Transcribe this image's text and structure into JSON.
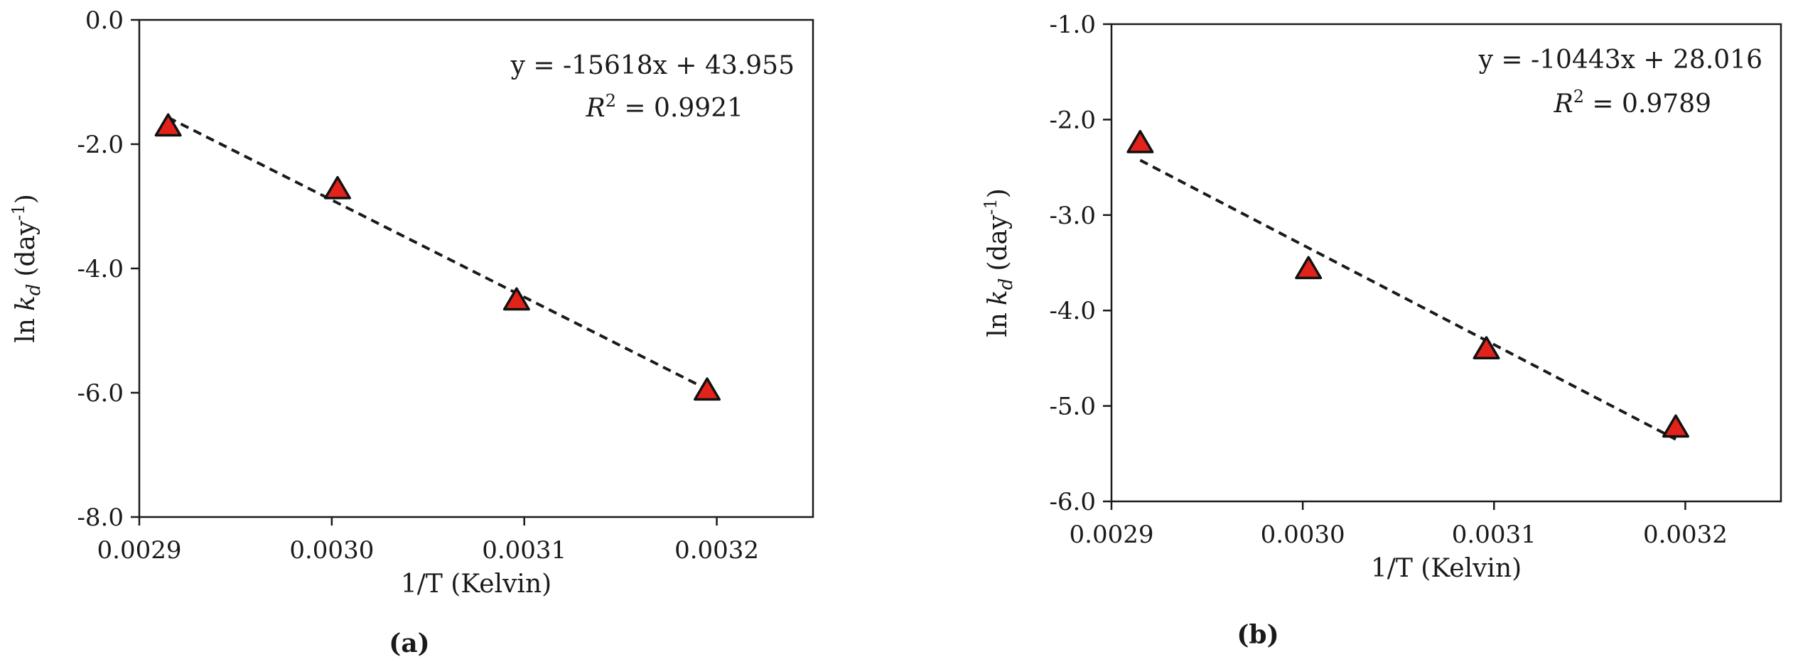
{
  "chart_data": [
    {
      "type": "scatter",
      "panel_label": "(a)",
      "xlabel": "1/T (Kelvin)",
      "ylabel_prefix": "ln",
      "ylabel_var": "k",
      "ylabel_sub": "d",
      "ylabel_unit": "(day",
      "ylabel_sup": "-1",
      "ylabel_close": ")",
      "xlim": [
        0.0029,
        0.00325
      ],
      "ylim": [
        -8.0,
        0.0
      ],
      "xticks": [
        0.0029,
        0.003,
        0.0031,
        0.0032
      ],
      "xtick_labels": [
        "0.0029",
        "0.0030",
        "0.0031",
        "0.0032"
      ],
      "yticks": [
        0.0,
        -2.0,
        -4.0,
        -6.0,
        -8.0
      ],
      "ytick_labels": [
        "0.0",
        "-2.0",
        "-4.0",
        "-6.0",
        "-8.0"
      ],
      "grid": false,
      "marker": "triangle",
      "marker_color": "#e3231b",
      "series": [
        {
          "x": [
            0.002915,
            0.003003,
            0.003096,
            0.003195
          ],
          "y": [
            -1.72,
            -2.73,
            -4.52,
            -5.97
          ]
        }
      ],
      "trendline": {
        "style": "dashed",
        "slope": -15618,
        "intercept": 43.955,
        "x_range": [
          0.002915,
          0.003195
        ]
      },
      "equation_text": "y = -15618x + 43.955",
      "r2_label": "R",
      "r2_sup": "2",
      "r2_value": " = 0.9921"
    },
    {
      "type": "scatter",
      "panel_label": "(b)",
      "xlabel": "1/T (Kelvin)",
      "ylabel_prefix": "ln",
      "ylabel_var": "k",
      "ylabel_sub": "d",
      "ylabel_unit": "(day",
      "ylabel_sup": "-1",
      "ylabel_close": ")",
      "xlim": [
        0.0029,
        0.00325
      ],
      "ylim": [
        -6.0,
        -1.0
      ],
      "xticks": [
        0.0029,
        0.003,
        0.0031,
        0.0032
      ],
      "xtick_labels": [
        "0.0029",
        "0.0030",
        "0.0031",
        "0.0032"
      ],
      "yticks": [
        -1.0,
        -2.0,
        -3.0,
        -4.0,
        -5.0,
        -6.0
      ],
      "ytick_labels": [
        "-1.0",
        "-2.0",
        "-3.0",
        "-4.0",
        "-5.0",
        "-6.0"
      ],
      "grid": false,
      "marker": "triangle",
      "marker_color": "#e3231b",
      "series": [
        {
          "x": [
            0.002915,
            0.003003,
            0.003096,
            0.003195
          ],
          "y": [
            -2.25,
            -3.57,
            -4.41,
            -5.23
          ]
        }
      ],
      "trendline": {
        "style": "dashed",
        "slope": -10443,
        "intercept": 28.016,
        "x_range": [
          0.002915,
          0.003195
        ]
      },
      "equation_text": "y = -10443x + 28.016",
      "r2_label": "R",
      "r2_sup": "2",
      "r2_value": " = 0.9789"
    }
  ]
}
